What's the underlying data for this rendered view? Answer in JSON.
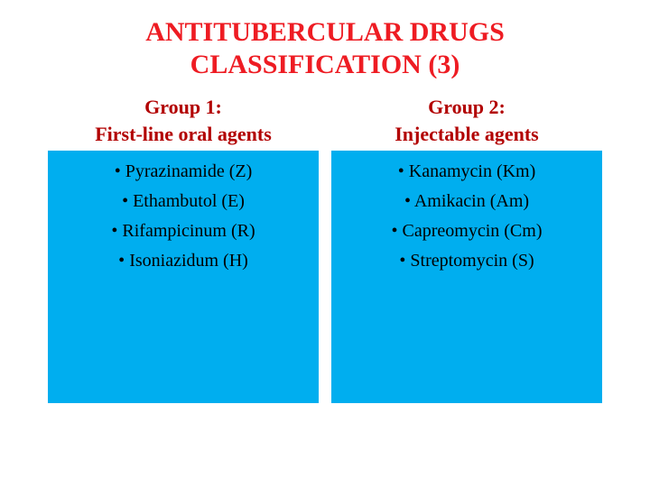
{
  "colors": {
    "title": "#ee1c23",
    "group_header": "#b20000",
    "panel_bg": "#00aeef",
    "item_text": "#000000",
    "page_bg": "#ffffff"
  },
  "title": "ANTITUBERCULAR  DRUGS CLASSIFICATION (3)",
  "groups": [
    {
      "name": "Group 1:",
      "subtitle": "First-line oral agents",
      "items": [
        "Pyrazinamide (Z)",
        "Ethambutol (E)",
        "Rifampicinum (R)",
        " Isoniazidum (H)"
      ]
    },
    {
      "name": "Group 2:",
      "subtitle": "Injectable agents",
      "items": [
        "Kanamycin (Km)",
        "Amikacin (Am)",
        "Capreomycin (Cm)",
        "Streptomycin (S)"
      ]
    }
  ]
}
